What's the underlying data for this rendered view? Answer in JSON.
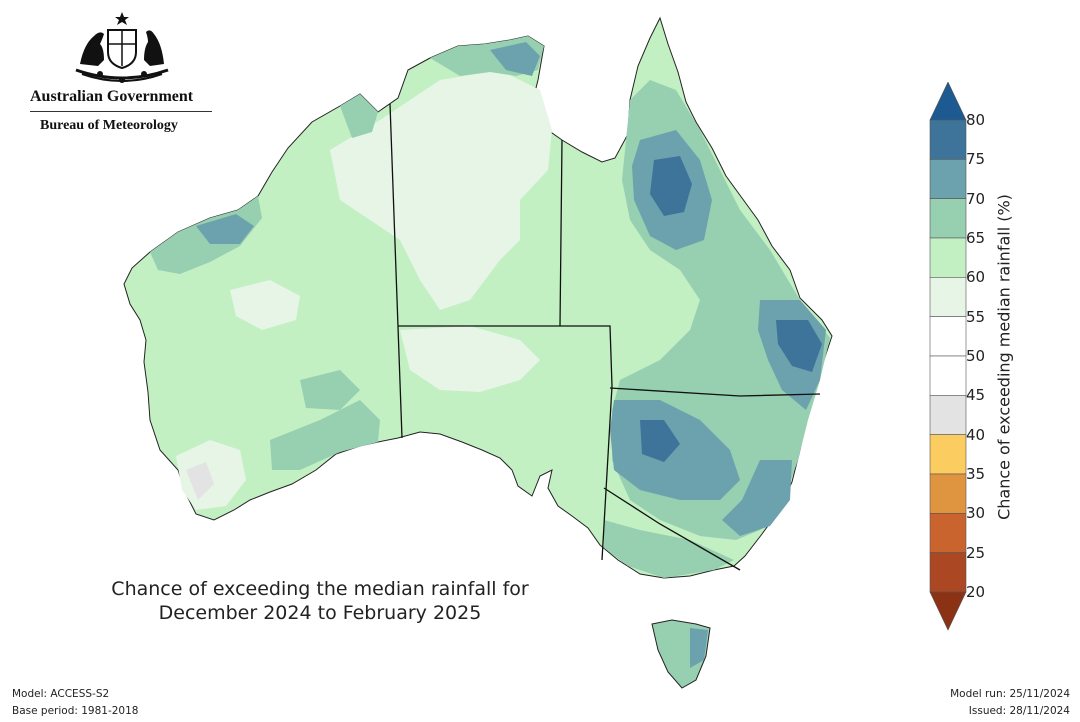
{
  "branding": {
    "government": "Australian Government",
    "bureau": "Bureau of Meteorology"
  },
  "map": {
    "title_line1": "Chance of exceeding the median rainfall for",
    "title_line2": "December 2024 to February 2025"
  },
  "colorbar": {
    "label": "Chance of exceeding median rainfall (%)",
    "ticks": [
      "20",
      "25",
      "30",
      "35",
      "40",
      "45",
      "50",
      "55",
      "60",
      "65",
      "70",
      "75",
      "80"
    ],
    "bins": [
      {
        "range": "<20",
        "color": "#8b3214"
      },
      {
        "range": "20-25",
        "color": "#ab4722"
      },
      {
        "range": "25-30",
        "color": "#c9642e"
      },
      {
        "range": "30-35",
        "color": "#df9540"
      },
      {
        "range": "35-40",
        "color": "#fbcc60"
      },
      {
        "range": "40-45",
        "color": "#e3e3e3"
      },
      {
        "range": "45-50",
        "color": "#ffffff"
      },
      {
        "range": "50-55",
        "color": "#ffffff"
      },
      {
        "range": "55-60",
        "color": "#e6f5e5"
      },
      {
        "range": "60-65",
        "color": "#c3f0c3"
      },
      {
        "range": "65-70",
        "color": "#97cfb1"
      },
      {
        "range": "70-75",
        "color": "#6ba2ae"
      },
      {
        "range": "75-80",
        "color": "#3e739a"
      },
      {
        "range": ">80",
        "color": "#1c5a91"
      }
    ]
  },
  "footer": {
    "model": "Model: ACCESS-S2",
    "base_period": "Base period: 1981-2018",
    "model_run": "Model run: 25/11/2024",
    "issued": "Issued: 28/11/2024"
  }
}
